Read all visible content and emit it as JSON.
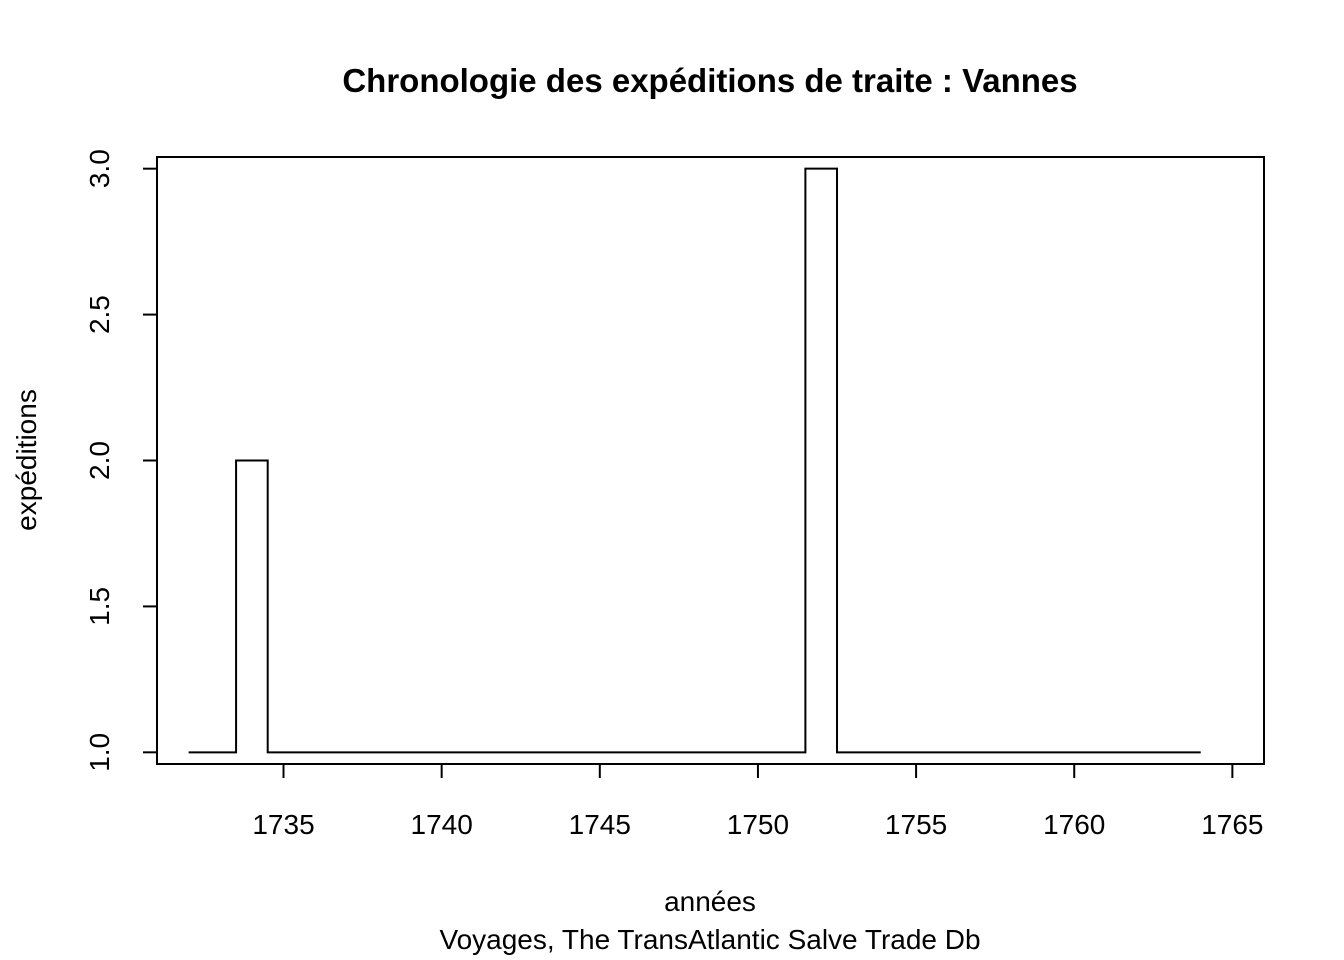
{
  "chart_data": {
    "type": "line",
    "step": "center",
    "title": "Chronologie des expéditions de traite :  Vannes",
    "xlabel": "années",
    "ylabel": "expéditions",
    "subtitle": "Voyages, The TransAtlantic Salve Trade Db",
    "x": [
      1732,
      1733,
      1734,
      1735,
      1736,
      1737,
      1738,
      1739,
      1740,
      1741,
      1742,
      1743,
      1744,
      1745,
      1746,
      1747,
      1748,
      1749,
      1750,
      1751,
      1752,
      1753,
      1754,
      1755,
      1756,
      1757,
      1758,
      1759,
      1760,
      1761,
      1762,
      1763,
      1764
    ],
    "y": [
      1,
      1,
      2,
      1,
      1,
      1,
      1,
      1,
      1,
      1,
      1,
      1,
      1,
      1,
      1,
      1,
      1,
      1,
      1,
      1,
      3,
      1,
      1,
      1,
      1,
      1,
      1,
      1,
      1,
      1,
      1,
      1,
      1
    ],
    "xlim": [
      1731,
      1766
    ],
    "ylim": [
      0.96,
      3.04
    ],
    "xticks": [
      "1735",
      "1740",
      "1745",
      "1750",
      "1755",
      "1760",
      "1765"
    ],
    "yticks": [
      "1.0",
      "1.5",
      "2.0",
      "2.5",
      "3.0"
    ],
    "grid": false,
    "line_color": "#000000"
  }
}
